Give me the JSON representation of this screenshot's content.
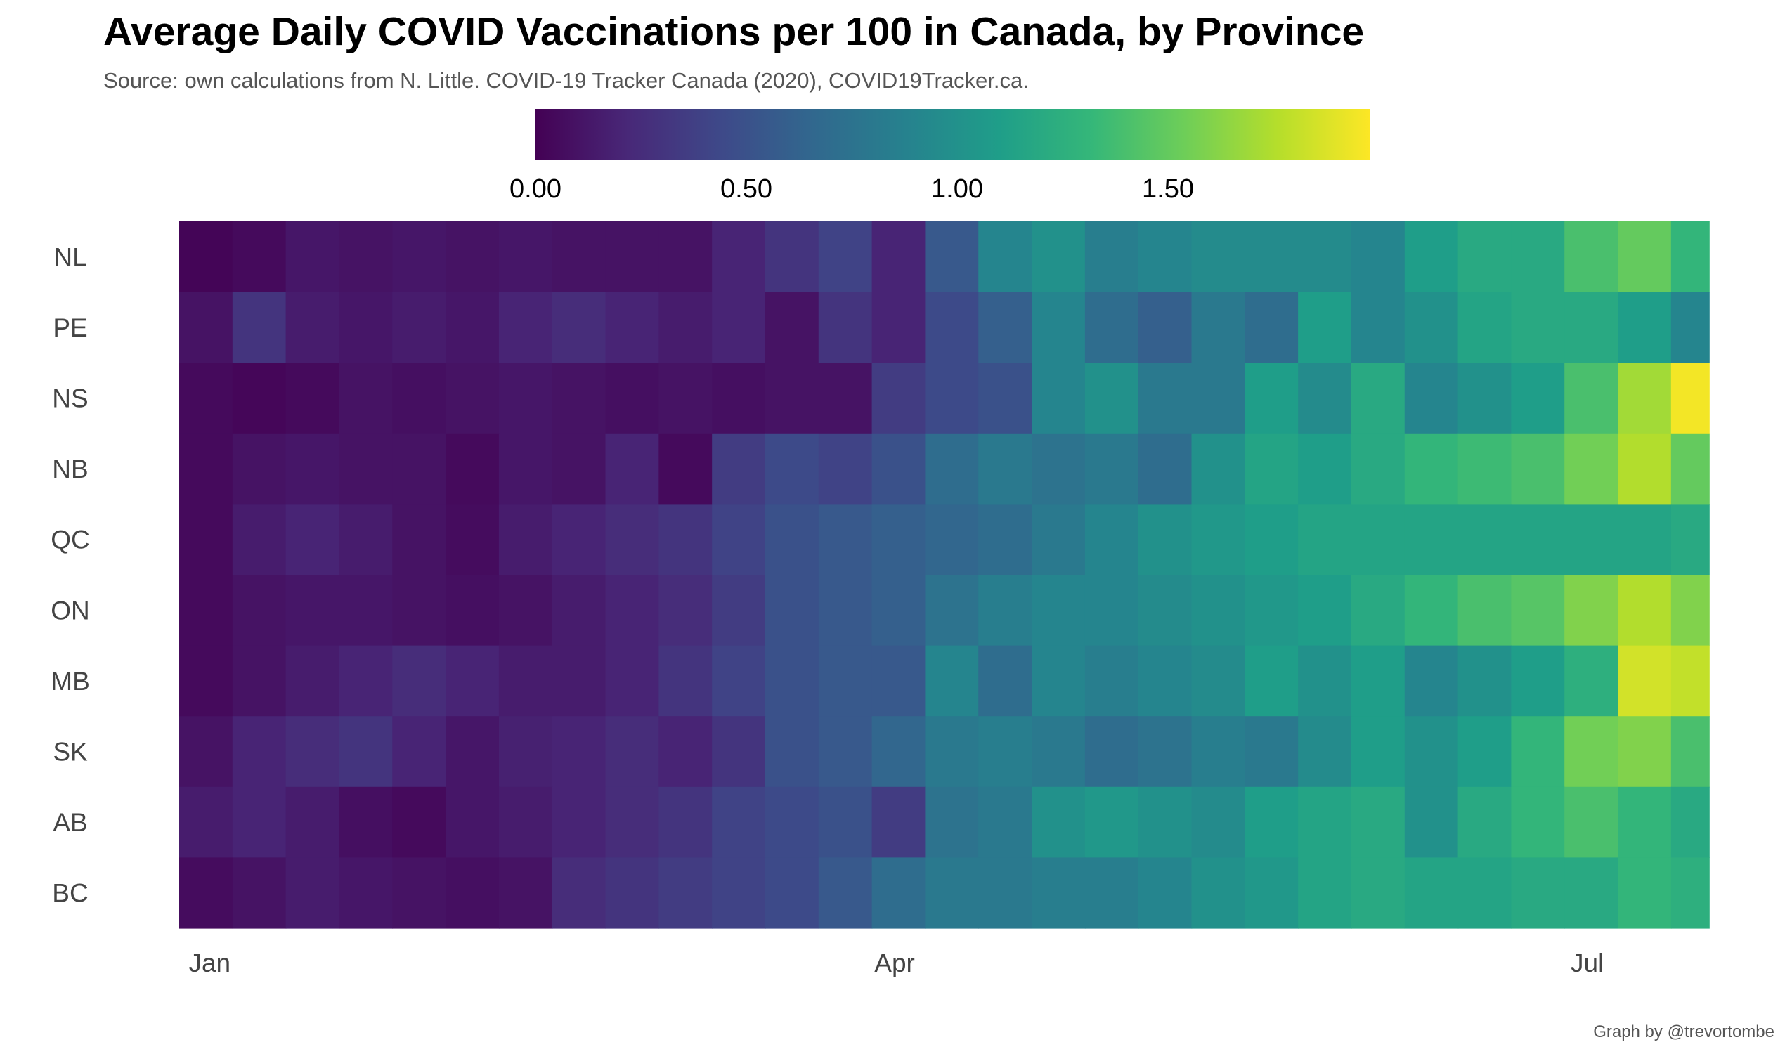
{
  "chart_data": {
    "type": "heatmap",
    "title": "Average Daily COVID Vaccinations per 100 in Canada, by Province",
    "subtitle": "Source: own calculations from N. Little. COVID-19 Tracker Canada (2020), COVID19Tracker.ca.",
    "caption": "Graph by @trevortombe",
    "xlabel": "",
    "ylabel": "",
    "x_tick_labels": [
      "Jan",
      "Apr",
      "Jul"
    ],
    "x_tick_dates": [
      "2021-01-01",
      "2021-04-01",
      "2021-07-01"
    ],
    "x_range": [
      "2020-12-28",
      "2021-07-17"
    ],
    "period_length_days": 7,
    "period_starts": [
      "Dec 28",
      "Jan 4",
      "Jan 11",
      "Jan 18",
      "Jan 25",
      "Feb 1",
      "Feb 8",
      "Feb 15",
      "Feb 22",
      "Mar 1",
      "Mar 8",
      "Mar 15",
      "Mar 22",
      "Mar 29",
      "Apr 5",
      "Apr 12",
      "Apr 19",
      "Apr 26",
      "May 3",
      "May 10",
      "May 17",
      "May 24",
      "May 31",
      "Jun 7",
      "Jun 14",
      "Jun 21",
      "Jun 28",
      "Jul 5",
      "Jul 12"
    ],
    "legend": {
      "title": "",
      "position": "top",
      "ticks": [
        "0.00",
        "0.50",
        "1.00",
        "1.50"
      ],
      "range": [
        0,
        1.98
      ],
      "palette": "viridis"
    },
    "provinces": [
      "NL",
      "PE",
      "NS",
      "NB",
      "QC",
      "ON",
      "MB",
      "SK",
      "AB",
      "BC"
    ],
    "values": {
      "NL": [
        0.02,
        0.05,
        0.12,
        0.1,
        0.12,
        0.1,
        0.12,
        0.1,
        0.1,
        0.1,
        0.2,
        0.3,
        0.4,
        0.2,
        0.55,
        0.9,
        1.0,
        0.85,
        0.9,
        0.95,
        0.95,
        0.95,
        0.9,
        1.1,
        1.2,
        1.2,
        1.4,
        1.5,
        1.3
      ],
      "PE": [
        0.1,
        0.3,
        0.15,
        0.12,
        0.15,
        0.12,
        0.2,
        0.25,
        0.2,
        0.15,
        0.2,
        0.1,
        0.3,
        0.2,
        0.45,
        0.6,
        0.9,
        0.7,
        0.6,
        0.8,
        0.7,
        1.1,
        0.9,
        1.0,
        1.15,
        1.2,
        1.2,
        1.1,
        0.9
      ],
      "NS": [
        0.05,
        0.03,
        0.05,
        0.1,
        0.08,
        0.1,
        0.12,
        0.1,
        0.08,
        0.1,
        0.08,
        0.1,
        0.1,
        0.35,
        0.45,
        0.5,
        0.9,
        1.0,
        0.8,
        0.8,
        1.1,
        0.95,
        1.2,
        0.9,
        1.0,
        1.1,
        1.4,
        1.7,
        1.95
      ],
      "NB": [
        0.05,
        0.1,
        0.12,
        0.1,
        0.1,
        0.05,
        0.12,
        0.1,
        0.2,
        0.05,
        0.35,
        0.45,
        0.4,
        0.5,
        0.7,
        0.8,
        0.75,
        0.8,
        0.7,
        1.0,
        1.15,
        1.1,
        1.2,
        1.3,
        1.35,
        1.4,
        1.55,
        1.75,
        1.5
      ],
      "QC": [
        0.05,
        0.15,
        0.2,
        0.15,
        0.1,
        0.06,
        0.15,
        0.2,
        0.25,
        0.3,
        0.4,
        0.5,
        0.55,
        0.6,
        0.65,
        0.7,
        0.8,
        0.9,
        1.0,
        1.05,
        1.1,
        1.15,
        1.15,
        1.15,
        1.15,
        1.15,
        1.15,
        1.15,
        1.2
      ],
      "ON": [
        0.05,
        0.1,
        0.12,
        0.12,
        0.1,
        0.08,
        0.1,
        0.15,
        0.2,
        0.25,
        0.35,
        0.5,
        0.55,
        0.6,
        0.75,
        0.85,
        0.9,
        0.9,
        0.95,
        1.0,
        1.05,
        1.1,
        1.2,
        1.3,
        1.4,
        1.45,
        1.6,
        1.75,
        1.6
      ],
      "MB": [
        0.05,
        0.1,
        0.15,
        0.2,
        0.25,
        0.2,
        0.15,
        0.15,
        0.2,
        0.3,
        0.4,
        0.5,
        0.55,
        0.55,
        0.9,
        0.7,
        0.9,
        0.85,
        0.9,
        0.95,
        1.1,
        1.0,
        1.1,
        0.9,
        1.0,
        1.1,
        1.25,
        1.85,
        1.8
      ],
      "SK": [
        0.1,
        0.2,
        0.25,
        0.3,
        0.2,
        0.12,
        0.18,
        0.2,
        0.25,
        0.2,
        0.3,
        0.5,
        0.55,
        0.65,
        0.8,
        0.85,
        0.8,
        0.7,
        0.75,
        0.85,
        0.8,
        0.95,
        1.1,
        1.0,
        1.1,
        1.3,
        1.55,
        1.6,
        1.4
      ],
      "AB": [
        0.15,
        0.2,
        0.15,
        0.08,
        0.05,
        0.12,
        0.15,
        0.2,
        0.25,
        0.3,
        0.4,
        0.45,
        0.5,
        0.35,
        0.75,
        0.8,
        1.0,
        1.05,
        1.0,
        0.95,
        1.1,
        1.15,
        1.2,
        1.0,
        1.2,
        1.3,
        1.4,
        1.3,
        1.2
      ],
      "BC": [
        0.06,
        0.1,
        0.15,
        0.12,
        0.1,
        0.08,
        0.1,
        0.25,
        0.3,
        0.35,
        0.4,
        0.45,
        0.55,
        0.7,
        0.8,
        0.8,
        0.85,
        0.85,
        0.9,
        1.0,
        1.05,
        1.15,
        1.2,
        1.15,
        1.15,
        1.2,
        1.2,
        1.3,
        1.25
      ]
    }
  }
}
